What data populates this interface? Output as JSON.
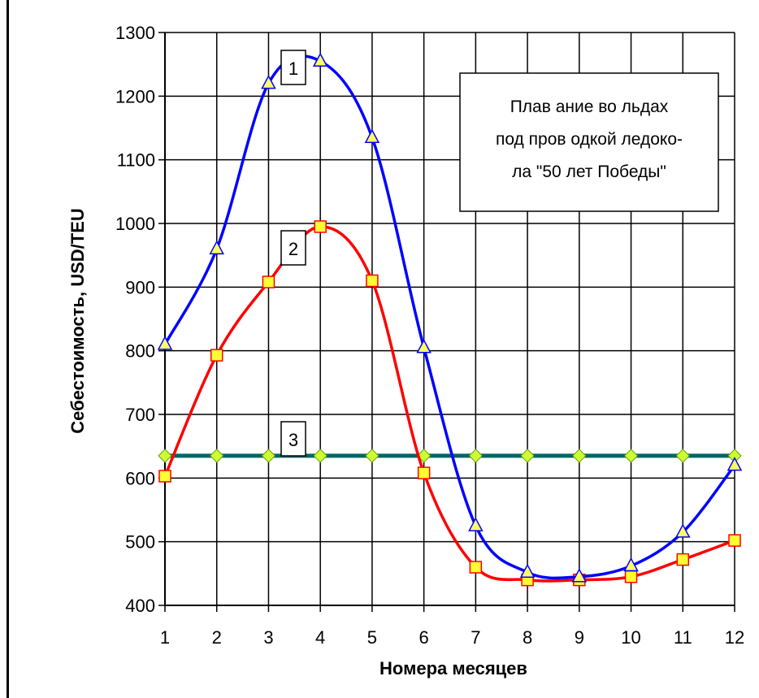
{
  "chart_data": {
    "type": "line",
    "title": "",
    "xlabel": "Номера месяцев",
    "ylabel": "Себестоимость, USD/TEU",
    "x": [
      1,
      2,
      3,
      4,
      5,
      6,
      7,
      8,
      9,
      10,
      11,
      12
    ],
    "xlim": [
      1,
      12
    ],
    "ylim": [
      400,
      1300
    ],
    "yticks": [
      400,
      500,
      600,
      700,
      800,
      900,
      1000,
      1100,
      1200,
      1300
    ],
    "grid": true,
    "legend": "none",
    "annotation": {
      "lines": [
        "Плав ание во льдах",
        "под пров одкой ледоко-",
        "ла \"50 лет Победы\""
      ]
    },
    "series": [
      {
        "label": "1",
        "color": "#0000ff",
        "marker": "triangle",
        "marker_color": "#ffff66",
        "values": [
          810,
          960,
          1220,
          1255,
          1135,
          805,
          525,
          452,
          445,
          462,
          515,
          620
        ]
      },
      {
        "label": "2",
        "color": "#ff0000",
        "marker": "square",
        "marker_color": "#ffff33",
        "values": [
          603,
          793,
          908,
          995,
          910,
          608,
          460,
          440,
          440,
          445,
          472,
          502
        ]
      },
      {
        "label": "3",
        "color": "#006666",
        "marker": "diamond",
        "marker_color": "#ccff33",
        "values": [
          635,
          635,
          635,
          635,
          635,
          635,
          635,
          635,
          635,
          635,
          635,
          635
        ]
      }
    ]
  }
}
